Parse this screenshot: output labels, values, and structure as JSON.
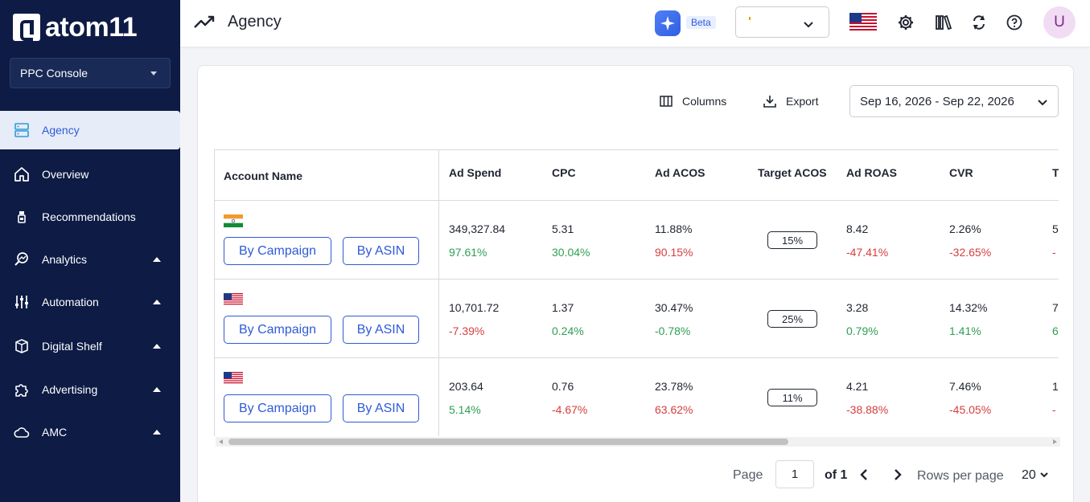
{
  "brand": {
    "name": "atom11"
  },
  "console": {
    "label": "PPC Console"
  },
  "nav": {
    "items": [
      {
        "label": "Agency",
        "icon": "server-icon",
        "active": true
      },
      {
        "label": "Overview",
        "icon": "home-icon"
      },
      {
        "label": "Recommendations",
        "icon": "lightbulb-icon"
      },
      {
        "label": "Analytics",
        "icon": "analytics-search-icon"
      },
      {
        "label": "Automation",
        "icon": "sliders-icon"
      },
      {
        "label": "Digital Shelf",
        "icon": "shelf-box-icon"
      },
      {
        "label": "Advertising",
        "icon": "puzzle-icon"
      },
      {
        "label": "AMC",
        "icon": "cloud-icon"
      }
    ]
  },
  "header": {
    "title": "Agency",
    "beta": "Beta",
    "avatar": "U"
  },
  "toolbar": {
    "columns": "Columns",
    "export": "Export",
    "date_range": "Sep 16, 2026 - Sep 22, 2026"
  },
  "table": {
    "headers": [
      "Account Name",
      "Ad Spend",
      "CPC",
      "Ad ACOS",
      "Target ACOS",
      "Ad ROAS",
      "CVR",
      "T"
    ],
    "buttons": {
      "campaign": "By Campaign",
      "asin": "By ASIN"
    },
    "rows": [
      {
        "flag": "india-flag-icon",
        "ad_spend": "349,327.84",
        "ad_spend_pct": "97.61%",
        "cpc": "5.31",
        "cpc_pct": "30.04%",
        "acos": "11.88%",
        "acos_pct": "90.15%",
        "target": "15%",
        "roas": "8.42",
        "roas_pct": "-47.41%",
        "cvr": "2.26%",
        "cvr_pct": "-32.65%",
        "t": "5",
        "t_pct": "-"
      },
      {
        "flag": "us-flag-icon",
        "ad_spend": "10,701.72",
        "ad_spend_pct": "-7.39%",
        "cpc": "1.37",
        "cpc_pct": "0.24%",
        "acos": "30.47%",
        "acos_pct": "-0.78%",
        "target": "25%",
        "roas": "3.28",
        "roas_pct": "0.79%",
        "cvr": "14.32%",
        "cvr_pct": "1.41%",
        "t": "7",
        "t_pct": "6"
      },
      {
        "flag": "us-flag-icon",
        "ad_spend": "203.64",
        "ad_spend_pct": "5.14%",
        "cpc": "0.76",
        "cpc_pct": "-4.67%",
        "acos": "23.78%",
        "acos_pct": "63.62%",
        "target": "11%",
        "roas": "4.21",
        "roas_pct": "-38.88%",
        "cvr": "7.46%",
        "cvr_pct": "-45.05%",
        "t": "1",
        "t_pct": "-"
      }
    ]
  },
  "pagination": {
    "page_label": "Page",
    "page_value": "1",
    "of_label": "of 1",
    "rows_label": "Rows per page",
    "rows_value": "20"
  },
  "colors": {
    "sidebar": "#0d1b45",
    "accent": "#2e5bd6",
    "positive": "#2f9e54",
    "negative": "#d63d3d"
  }
}
